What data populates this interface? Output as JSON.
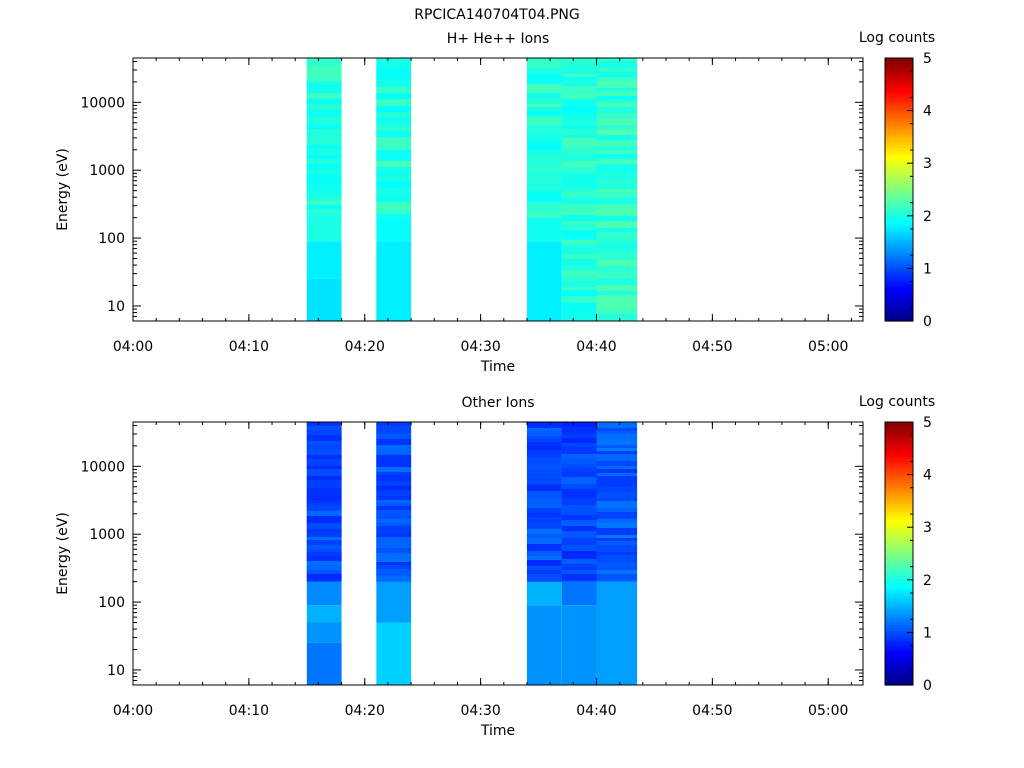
{
  "title": "RPCICA140704T04.PNG",
  "chart_data": [
    {
      "type": "heatmap",
      "title": "H+ He++ Ions",
      "xlabel": "Time",
      "ylabel": "Energy (eV)",
      "yscale": "log",
      "xlim": [
        "04:00",
        "05:03"
      ],
      "ylim": [
        6,
        45000
      ],
      "x_ticks": [
        "04:00",
        "04:10",
        "04:20",
        "04:30",
        "04:40",
        "04:50",
        "05:00"
      ],
      "y_ticks": [
        "10",
        "100",
        "1000",
        "10000"
      ],
      "colorbar": {
        "label": "Log counts",
        "range": [
          0,
          5
        ],
        "ticks": [
          "0",
          "1",
          "2",
          "3",
          "4",
          "5"
        ]
      },
      "columns": [
        {
          "start": "04:15",
          "end": "04:18",
          "bins": [
            {
              "from": 6,
              "to": 25,
              "value": 1.75
            },
            {
              "from": 25,
              "to": 90,
              "value": 1.8
            },
            {
              "from": 90,
              "to": 200,
              "value": 2.0
            },
            {
              "from": 200,
              "to": 45000,
              "value": 2.05
            }
          ]
        },
        {
          "start": "04:21",
          "end": "04:24",
          "bins": [
            {
              "from": 6,
              "to": 90,
              "value": 1.8
            },
            {
              "from": 90,
              "to": 200,
              "value": 1.9
            },
            {
              "from": 200,
              "to": 45000,
              "value": 2.05
            }
          ]
        },
        {
          "start": "04:34",
          "end": "04:37",
          "bins": [
            {
              "from": 6,
              "to": 90,
              "value": 1.8
            },
            {
              "from": 90,
              "to": 200,
              "value": 1.95
            },
            {
              "from": 200,
              "to": 45000,
              "value": 2.05
            }
          ]
        },
        {
          "start": "04:37",
          "end": "04:40",
          "bins": [
            {
              "from": 6,
              "to": 45000,
              "value": 2.05
            }
          ]
        },
        {
          "start": "04:40",
          "end": "04:43.5",
          "bins": [
            {
              "from": 6,
              "to": 45000,
              "value": 2.1
            }
          ]
        }
      ]
    },
    {
      "type": "heatmap",
      "title": "Other Ions",
      "xlabel": "Time",
      "ylabel": "Energy (eV)",
      "yscale": "log",
      "xlim": [
        "04:00",
        "05:03"
      ],
      "ylim": [
        6,
        45000
      ],
      "x_ticks": [
        "04:00",
        "04:10",
        "04:20",
        "04:30",
        "04:40",
        "04:50",
        "05:00"
      ],
      "y_ticks": [
        "10",
        "100",
        "1000",
        "10000"
      ],
      "colorbar": {
        "label": "Log counts",
        "range": [
          0,
          5
        ],
        "ticks": [
          "0",
          "1",
          "2",
          "3",
          "4",
          "5"
        ]
      },
      "columns": [
        {
          "start": "04:15",
          "end": "04:18",
          "bins": [
            {
              "from": 6,
              "to": 25,
              "value": 1.2
            },
            {
              "from": 25,
              "to": 50,
              "value": 1.35
            },
            {
              "from": 50,
              "to": 90,
              "value": 1.5
            },
            {
              "from": 90,
              "to": 200,
              "value": 1.3
            },
            {
              "from": 200,
              "to": 45000,
              "value": 1.0
            }
          ]
        },
        {
          "start": "04:21",
          "end": "04:24",
          "bins": [
            {
              "from": 6,
              "to": 50,
              "value": 1.65
            },
            {
              "from": 50,
              "to": 200,
              "value": 1.4
            },
            {
              "from": 200,
              "to": 45000,
              "value": 1.0
            }
          ]
        },
        {
          "start": "04:34",
          "end": "04:37",
          "bins": [
            {
              "from": 6,
              "to": 90,
              "value": 1.35
            },
            {
              "from": 90,
              "to": 200,
              "value": 1.5
            },
            {
              "from": 200,
              "to": 45000,
              "value": 1.0
            }
          ]
        },
        {
          "start": "04:37",
          "end": "04:40",
          "bins": [
            {
              "from": 6,
              "to": 90,
              "value": 1.35
            },
            {
              "from": 90,
              "to": 200,
              "value": 1.2
            },
            {
              "from": 200,
              "to": 45000,
              "value": 0.95
            }
          ]
        },
        {
          "start": "04:40",
          "end": "04:43.5",
          "bins": [
            {
              "from": 6,
              "to": 200,
              "value": 1.4
            },
            {
              "from": 200,
              "to": 45000,
              "value": 1.05
            }
          ]
        }
      ]
    }
  ]
}
